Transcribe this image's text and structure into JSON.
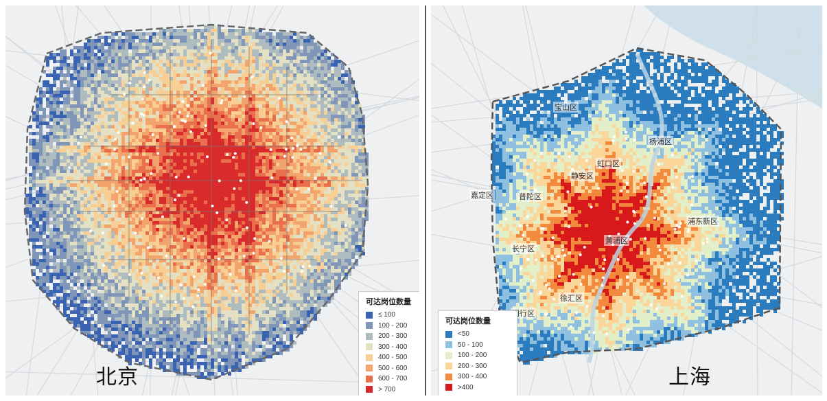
{
  "panels": {
    "beijing": {
      "title": "北京",
      "legend": {
        "title": "可达岗位数量",
        "items": [
          {
            "label": "≤ 100",
            "color": "#3a63b4"
          },
          {
            "label": "100 - 200",
            "color": "#7f96b8"
          },
          {
            "label": "200 - 300",
            "color": "#aebbbf"
          },
          {
            "label": "300 - 400",
            "color": "#e3e0c3"
          },
          {
            "label": "400 - 500",
            "color": "#f7cf95"
          },
          {
            "label": "500 - 600",
            "color": "#f3a36c"
          },
          {
            "label": "600 - 700",
            "color": "#ea6f4c"
          },
          {
            "label": "> 700",
            "color": "#d92b2b"
          }
        ]
      }
    },
    "shanghai": {
      "title": "上海",
      "districts": [
        "宝山区",
        "杨浦区",
        "虹口区",
        "静安区",
        "嘉定区",
        "普陀区",
        "浦东新区",
        "黄浦区",
        "长宁区",
        "徐汇区",
        "闵行区"
      ],
      "legend": {
        "title": "可达岗位数量",
        "items": [
          {
            "label": "<50",
            "color": "#2b7bbf"
          },
          {
            "label": "50 - 100",
            "color": "#8fc0e0"
          },
          {
            "label": "100 - 200",
            "color": "#e3efc9"
          },
          {
            "label": "200 - 300",
            "color": "#fbd69b"
          },
          {
            "label": "300 - 400",
            "color": "#f3893d"
          },
          {
            "label": ">400",
            "color": "#d7191c"
          }
        ]
      }
    }
  }
}
